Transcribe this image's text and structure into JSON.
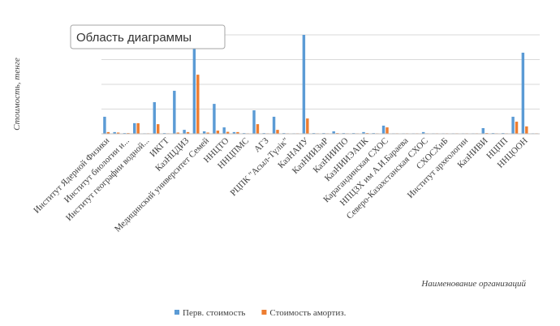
{
  "chart_data": {
    "type": "bar",
    "tooltip": "Область диаграммы",
    "y_axis_label": "Стоимость, тенге",
    "x_axis_label": "Наименование организаций",
    "categories": [
      "Институт Ядерной Физики",
      null,
      "Институт биологии и...",
      null,
      "Институт географии водной...",
      null,
      "ИКГТ",
      null,
      "КазНЦДИЗ",
      null,
      "Медицинский университет Семей",
      null,
      "ННЦТО",
      null,
      "ННЦПМС",
      null,
      "АГЗ",
      null,
      "РЦПК \"Асыл-Түлік\"",
      null,
      "КазНАИУ",
      null,
      "КазНИИЗиР",
      null,
      "КазНИИПО",
      null,
      "КазНИИЭАПК",
      null,
      "Карагандинская СХОС",
      null,
      "НПЦЗХ им А.И.Бараева",
      null,
      "Северо-Казахстанская СХОС",
      null,
      "СХОСХиБ",
      null,
      "Институт археологии",
      null,
      "КазНИВИ",
      null,
      "НЦПП",
      null,
      "ННЦООН",
      null
    ],
    "series": [
      {
        "name": "Перв. стоимость",
        "color": "#5b9bd5",
        "values": [
          0.69,
          0.07,
          0.03,
          0.43,
          0.02,
          1.28,
          0.03,
          1.74,
          0.16,
          3.6,
          0.1,
          1.21,
          0.26,
          0.07,
          0.03,
          0.95,
          0.03,
          0.69,
          0.03,
          0.02,
          4.0,
          0.03,
          0.03,
          0.1,
          0.03,
          0.03,
          0.07,
          0.03,
          0.33,
          0.02,
          0.02,
          0.02,
          0.07,
          0.02,
          0.02,
          0.02,
          0.02,
          0.02,
          0.23,
          0.03,
          0.03,
          0.69,
          3.28,
          0.02
        ]
      },
      {
        "name": "Стоимость амортиз.",
        "color": "#ed7d31",
        "values": [
          0.07,
          0.05,
          0.03,
          0.43,
          0.02,
          0.39,
          0.02,
          0.05,
          0.07,
          2.39,
          0.05,
          0.13,
          0.08,
          0.07,
          0.02,
          0.39,
          0.02,
          0.16,
          0.02,
          0.02,
          0.62,
          0.02,
          0.02,
          0.03,
          0.02,
          0.02,
          0.03,
          0.02,
          0.26,
          0.02,
          0.02,
          0.02,
          0.02,
          0.02,
          0.02,
          0.02,
          0.02,
          0.02,
          0.03,
          0.02,
          0.02,
          0.49,
          0.3,
          0.02
        ]
      }
    ],
    "ylim": [
      0,
      4
    ],
    "yticks": [
      0,
      1,
      2,
      3,
      4
    ],
    "grid": true,
    "legend": "bottom"
  }
}
